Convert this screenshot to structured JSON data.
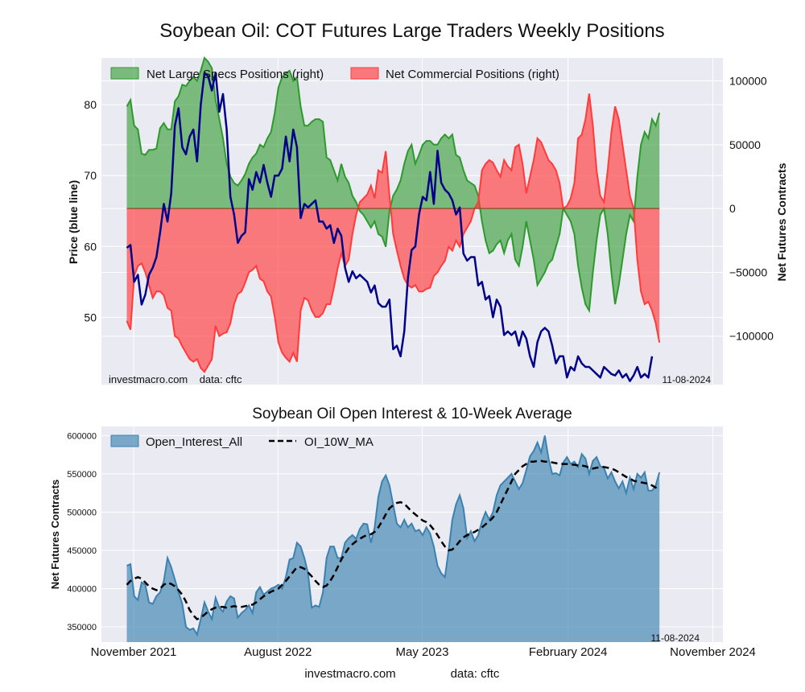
{
  "page": {
    "title": "Soybean Oil: COT Futures Large Traders Weekly Positions",
    "footer_site": "investmacro.com",
    "footer_source": "data: cftc",
    "colors": {
      "background": "#eaeaf2",
      "grid": "#ffffff",
      "specs": "#2e9a2e",
      "commercial": "#ff3b3b",
      "price": "#00008b",
      "oi": "#3b82b0",
      "ma": "#000000"
    }
  },
  "chart_data": [
    {
      "type": "area",
      "title": "",
      "ylabel_left": "Price (blue line)",
      "ylabel_right": "Net Futures Contracts",
      "watermark_left": "investmacro.com    data: cftc",
      "watermark_right": "11-08-2024",
      "legend": "top-left",
      "grid": true,
      "price_yticks": [
        50,
        60,
        70,
        80
      ],
      "price_ylim": [
        40.5,
        86.6
      ],
      "net_yticks": [
        100000,
        50000,
        0,
        -50000,
        -100000
      ],
      "net_ytick_labels": [
        "100000",
        "50000",
        "0",
        "−50000",
        "−100000"
      ],
      "net_ylim": [
        -138000,
        118000
      ],
      "x_range": [
        "2021-09-01",
        "2024-11-20"
      ],
      "series": [
        {
          "name": "Net Large Specs Positions (right)",
          "kind": "area",
          "values": [
            80000,
            85000,
            65000,
            62000,
            43000,
            42000,
            46000,
            46000,
            47000,
            63000,
            67000,
            62000,
            62000,
            84000,
            88000,
            97000,
            96000,
            100000,
            103000,
            100000,
            108000,
            118000,
            115000,
            110000,
            85000,
            70000,
            55000,
            35000,
            25000,
            20000,
            18000,
            22000,
            27000,
            35000,
            40000,
            43000,
            50000,
            48000,
            55000,
            60000,
            75000,
            95000,
            103000,
            106000,
            108000,
            100000,
            103000,
            80000,
            65000,
            65000,
            68000,
            70000,
            70000,
            68000,
            40000,
            38000,
            30000,
            22000,
            35000,
            25000,
            20000,
            10000,
            5000,
            -2000,
            -5000,
            -10000,
            -15000,
            -10000,
            -20000,
            -22000,
            -30000,
            -2000,
            10000,
            15000,
            22000,
            35000,
            45000,
            50000,
            35000,
            42000,
            50000,
            53000,
            53000,
            50000,
            50000,
            55000,
            58000,
            55000,
            58000,
            42000,
            40000,
            30000,
            22000,
            20000,
            18000,
            10000,
            -10000,
            -25000,
            -35000,
            -33000,
            -28000,
            -25000,
            -35000,
            -25000,
            -20000,
            -40000,
            -45000,
            -30000,
            -10000,
            -25000,
            -40000,
            -60000,
            -55000,
            -50000,
            -43000,
            -40000,
            -30000,
            -20000,
            0,
            -5000,
            -10000,
            -20000,
            -45000,
            -62000,
            -75000,
            -80000,
            -50000,
            -25000,
            -5000,
            0,
            -20000,
            -50000,
            -75000,
            -60000,
            -40000,
            -20000,
            -5000,
            -10000,
            25000,
            50000,
            60000,
            55000,
            70000,
            65000,
            75000
          ]
        },
        {
          "name": "Net Commercial Positions (right)",
          "kind": "area",
          "values": [
            -88000,
            -95000,
            -53000,
            -45000,
            -43000,
            -50000,
            -60000,
            -70000,
            -65000,
            -65000,
            -68000,
            -78000,
            -80000,
            -100000,
            -102000,
            -108000,
            -113000,
            -118000,
            -120000,
            -118000,
            -125000,
            -128000,
            -123000,
            -118000,
            -92000,
            -100000,
            -98000,
            -97000,
            -90000,
            -75000,
            -67000,
            -65000,
            -58000,
            -50000,
            -48000,
            -45000,
            -55000,
            -57000,
            -65000,
            -69000,
            -85000,
            -105000,
            -113000,
            -117000,
            -120000,
            -113000,
            -120000,
            -80000,
            -70000,
            -72000,
            -80000,
            -85000,
            -85000,
            -82000,
            -75000,
            -75000,
            -62000,
            -47000,
            -35000,
            -45000,
            -40000,
            -20000,
            -5000,
            5000,
            8000,
            11000,
            18000,
            8000,
            30000,
            28000,
            45000,
            10000,
            -20000,
            -33000,
            -45000,
            -55000,
            -60000,
            -62000,
            -60000,
            -65000,
            -65000,
            -63000,
            -62000,
            -53000,
            -50000,
            -45000,
            -41000,
            -30000,
            -33000,
            -25000,
            -30000,
            -20000,
            -15000,
            -10000,
            0,
            5000,
            30000,
            35000,
            38000,
            36000,
            30000,
            25000,
            38000,
            33000,
            30000,
            48000,
            50000,
            35000,
            12000,
            25000,
            38000,
            55000,
            52000,
            45000,
            38000,
            35000,
            30000,
            20000,
            0,
            2000,
            8000,
            20000,
            55000,
            58000,
            70000,
            90000,
            65000,
            30000,
            10000,
            5000,
            30000,
            60000,
            80000,
            70000,
            50000,
            30000,
            10000,
            0,
            -40000,
            -65000,
            -75000,
            -73000,
            -80000,
            -90000,
            -105000
          ]
        },
        {
          "name": "Price",
          "kind": "line",
          "values": [
            59.8,
            60.2,
            55.0,
            56.0,
            51.8,
            53.2,
            56.0,
            57.0,
            58.5,
            62.0,
            66.0,
            63.5,
            67.5,
            77.0,
            79.5,
            74.0,
            73.0,
            75.5,
            76.5,
            72.0,
            80.0,
            84.5,
            84.0,
            82.0,
            84.5,
            79.0,
            81.5,
            76.5,
            67.0,
            64.5,
            60.5,
            61.5,
            62.0,
            69.5,
            68.0,
            70.5,
            69.0,
            71.5,
            69.0,
            67.0,
            70.0,
            70.0,
            71.0,
            75.5,
            72.0,
            76.5,
            74.0,
            64.0,
            66.0,
            65.5,
            66.0,
            66.5,
            63.5,
            63.5,
            62.5,
            63.0,
            60.5,
            62.5,
            61.5,
            57.0,
            55.0,
            56.5,
            55.5,
            56.0,
            55.5,
            55.0,
            53.5,
            54.5,
            52.0,
            51.5,
            51.5,
            52.5,
            45.5,
            46.0,
            44.5,
            48.0,
            55.5,
            59.5,
            60.0,
            64.5,
            67.0,
            66.5,
            70.5,
            66.0,
            73.5,
            69.0,
            68.0,
            67.5,
            66.5,
            64.5,
            65.5,
            59.0,
            58.0,
            58.5,
            58.5,
            54.5,
            55.0,
            52.5,
            53.0,
            50.0,
            52.5,
            51.5,
            47.5,
            48.0,
            47.5,
            48.0,
            46.0,
            48.0,
            47.0,
            44.5,
            43.0,
            46.5,
            48.0,
            48.5,
            48.0,
            46.0,
            43.5,
            44.5,
            44.5,
            41.5,
            43.0,
            42.5,
            44.5,
            43.5,
            43.0,
            43.0,
            42.5,
            42.0,
            41.5,
            43.0,
            42.5,
            42.0,
            41.8,
            42.5,
            41.5,
            42.0,
            41.0,
            41.8,
            43.0,
            41.5,
            42.0,
            41.5,
            44.5
          ]
        }
      ]
    },
    {
      "type": "area",
      "title": "Soybean Oil Open Interest & 10-Week Average",
      "ylabel": "Net Futures Contracts",
      "watermark_right": "11-08-2024",
      "legend": "top-left",
      "grid": true,
      "yticks": [
        350000,
        400000,
        450000,
        500000,
        550000,
        600000
      ],
      "ylim": [
        330000,
        612000
      ],
      "x_range": [
        "2021-09-01",
        "2024-11-20"
      ],
      "x_ticks": [
        "2021-11-01",
        "2022-08-01",
        "2023-05-01",
        "2024-02-01",
        "2024-11-01"
      ],
      "x_tick_labels": [
        "November 2021",
        "August 2022",
        "May 2023",
        "February 2024",
        "November 2024"
      ],
      "series": [
        {
          "name": "Open_Interest_All",
          "kind": "area",
          "values": [
            430000,
            432000,
            390000,
            385000,
            408000,
            405000,
            382000,
            380000,
            390000,
            395000,
            410000,
            440000,
            428000,
            412000,
            395000,
            380000,
            350000,
            346000,
            348000,
            340000,
            360000,
            382000,
            370000,
            360000,
            388000,
            375000,
            370000,
            383000,
            390000,
            387000,
            362000,
            368000,
            372000,
            378000,
            368000,
            395000,
            402000,
            392000,
            396000,
            400000,
            402000,
            405000,
            400000,
            415000,
            438000,
            440000,
            460000,
            455000,
            440000,
            420000,
            375000,
            378000,
            376000,
            395000,
            440000,
            455000,
            455000,
            440000,
            440000,
            460000,
            466000,
            470000,
            465000,
            478000,
            485000,
            484000,
            460000,
            480000,
            520000,
            540000,
            548000,
            535000,
            510000,
            485000,
            480000,
            490000,
            480000,
            485000,
            475000,
            477000,
            470000,
            480000,
            472000,
            455000,
            430000,
            420000,
            415000,
            450000,
            490000,
            510000,
            522000,
            505000,
            466000,
            475000,
            462000,
            470000,
            488000,
            500000,
            490000,
            500000,
            522000,
            535000,
            540000,
            545000,
            550000,
            540000,
            530000,
            538000,
            555000,
            573000,
            580000,
            591000,
            578000,
            600000,
            570000,
            550000,
            551000,
            548000,
            565000,
            572000,
            563000,
            566000,
            559000,
            576000,
            570000,
            550000,
            567000,
            572000,
            560000,
            558000,
            544000,
            552000,
            540000,
            531000,
            540000,
            525000,
            545000,
            530000,
            550000,
            545000,
            552000,
            528000,
            528000,
            535000,
            552000
          ],
          "values_note": ""
        },
        {
          "name": "OI_10W_MA",
          "kind": "line",
          "values": [
            405000,
            410000,
            413000,
            415000,
            413000,
            408000,
            403000,
            400000,
            398000,
            400000,
            405000,
            408000,
            406000,
            403000,
            398000,
            392000,
            383000,
            372000,
            365000,
            360000,
            362000,
            366000,
            370000,
            373000,
            375000,
            376000,
            376000,
            375000,
            376000,
            377000,
            376000,
            376000,
            377000,
            378000,
            379000,
            382000,
            386000,
            390000,
            393000,
            396000,
            398000,
            400000,
            405000,
            410000,
            416000,
            422000,
            428000,
            428000,
            426000,
            421000,
            416000,
            410000,
            405000,
            402000,
            404000,
            410000,
            418000,
            428000,
            438000,
            446000,
            453000,
            458000,
            462000,
            465000,
            468000,
            470000,
            471000,
            474000,
            480000,
            488000,
            497000,
            505000,
            509000,
            512000,
            513000,
            511000,
            506000,
            501000,
            497000,
            493000,
            489000,
            487000,
            483000,
            477000,
            470000,
            462000,
            455000,
            450000,
            451000,
            456000,
            462000,
            467000,
            470000,
            472000,
            474000,
            477000,
            480000,
            484000,
            488000,
            493000,
            500000,
            510000,
            520000,
            530000,
            540000,
            550000,
            555000,
            560000,
            563000,
            566000,
            566000,
            567000,
            567000,
            566000,
            566000,
            565000,
            564000,
            563000,
            563000,
            563000,
            562000,
            562000,
            561000,
            561000,
            560000,
            558000,
            557000,
            558000,
            559000,
            559000,
            558000,
            557000,
            555000,
            552000,
            549000,
            546000,
            544000,
            541000,
            540000,
            539000,
            538000,
            537000,
            535000,
            532000,
            528000
          ]
        }
      ]
    }
  ]
}
